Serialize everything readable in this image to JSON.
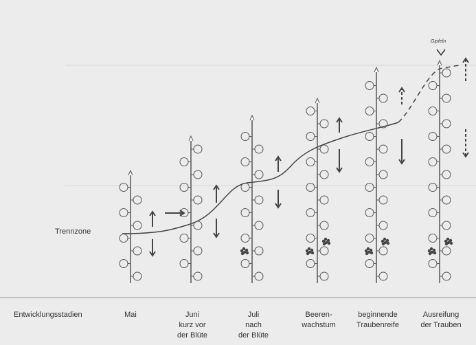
{
  "annotations": {
    "top": "Gipfeln",
    "zone": "Trennzone"
  },
  "axis_label": "Entwicklungsstadien",
  "stages": [
    {
      "lines": [
        "Mai"
      ]
    },
    {
      "lines": [
        "Juni",
        "kurz vor",
        "der Blüte"
      ]
    },
    {
      "lines": [
        "Juli",
        "nach",
        "der Blüte"
      ]
    },
    {
      "lines": [
        "Beeren-",
        "wachstum"
      ]
    },
    {
      "lines": [
        "beginnende",
        "Traubenreife"
      ]
    },
    {
      "lines": [
        "Ausreifung",
        "der Trauben"
      ]
    }
  ]
}
